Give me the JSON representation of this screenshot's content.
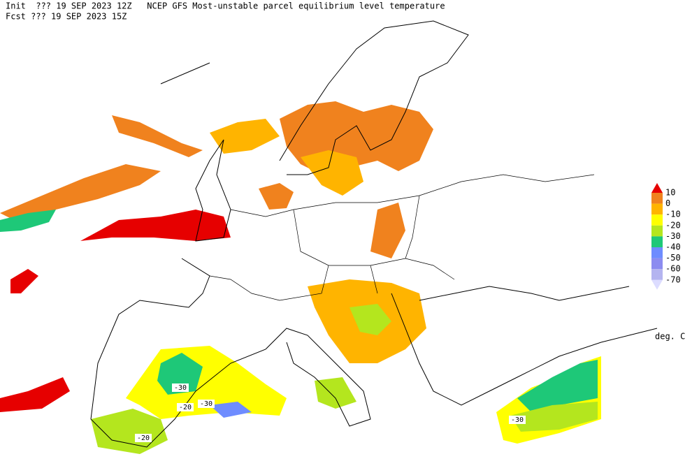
{
  "header": {
    "line1": "Init  ??? 19 SEP 2023 12Z   NCEP GFS Most-unstable parcel equilibrium level temperature",
    "line2": "Fcst ??? 19 SEP 2023 15Z"
  },
  "legend": {
    "labels": [
      10,
      0,
      -10,
      -20,
      -30,
      -40,
      -50,
      -60,
      -70
    ],
    "colors": [
      "#e60000",
      "#f0821e",
      "#ffb400",
      "#ffff00",
      "#b4e61e",
      "#1ec878",
      "#6e8cff",
      "#8c8cf0",
      "#b4b4f0",
      "#dcdcff"
    ],
    "unit": "deg. C"
  },
  "contour_labels": [
    "-30",
    "-20",
    "-30",
    "-20",
    "-30"
  ]
}
